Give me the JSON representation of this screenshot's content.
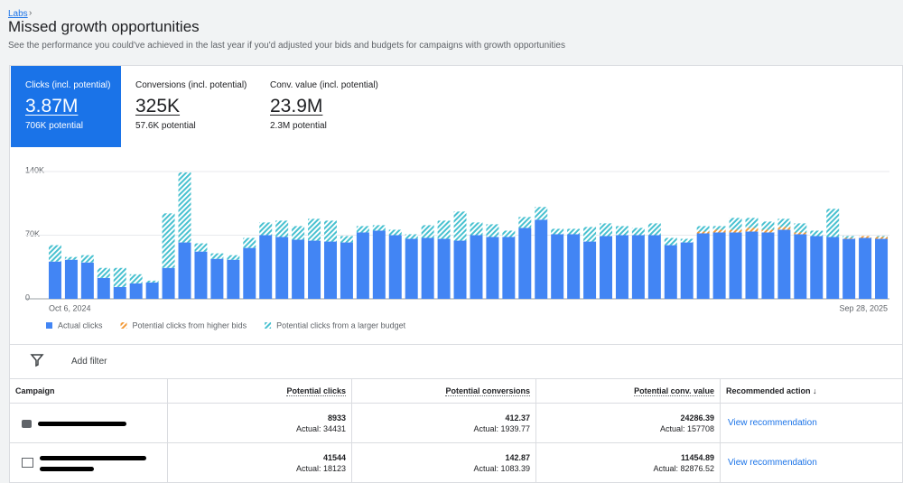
{
  "breadcrumb": "Labs",
  "header": {
    "title": "Missed growth opportunities",
    "subtitle": "See the performance you could've achieved in the last year if you'd adjusted your bids and budgets for campaigns with growth opportunities"
  },
  "metrics": [
    {
      "label": "Clicks (incl. potential)",
      "value": "3.87M",
      "potential": "706K potential"
    },
    {
      "label": "Conversions (incl. potential)",
      "value": "325K",
      "potential": "57.6K potential"
    },
    {
      "label": "Conv. value (incl. potential)",
      "value": "23.9M",
      "potential": "2.3M potential"
    }
  ],
  "chart_data": {
    "type": "stacked-bar",
    "categories": [
      "Oct 6, 2024",
      null,
      null,
      null,
      null,
      null,
      null,
      null,
      null,
      null,
      null,
      null,
      null,
      null,
      null,
      null,
      null,
      null,
      null,
      null,
      null,
      null,
      null,
      null,
      null,
      null,
      null,
      null,
      null,
      null,
      null,
      null,
      null,
      null,
      null,
      null,
      null,
      null,
      null,
      null,
      null,
      null,
      null,
      null,
      null,
      null,
      null,
      null,
      null,
      null,
      null,
      "Sep 28, 2025"
    ],
    "series": [
      {
        "name": "Actual clicks",
        "color": "#4285f4",
        "hatched": false,
        "values": [
          41000,
          43000,
          40000,
          23000,
          13000,
          17000,
          18000,
          34000,
          62000,
          52000,
          44000,
          43000,
          56000,
          70000,
          68000,
          65000,
          64000,
          63000,
          62000,
          73000,
          75000,
          70000,
          66000,
          67000,
          66000,
          64000,
          70000,
          68000,
          68000,
          78000,
          87000,
          71000,
          71000,
          63000,
          69000,
          70000,
          70000,
          70000,
          59000,
          62000,
          72000,
          73000,
          73000,
          74000,
          73000,
          76000,
          71000,
          69000,
          68000,
          66000,
          67000,
          66000
        ]
      },
      {
        "name": "Potential clicks from higher bids",
        "color": "#f29a38",
        "hatched": true,
        "values": [
          0,
          0,
          0,
          0,
          0,
          0,
          0,
          0,
          0,
          0,
          0,
          0,
          0,
          0,
          0,
          0,
          0,
          0,
          0,
          0,
          0,
          0,
          0,
          0,
          0,
          0,
          0,
          0,
          0,
          0,
          0,
          0,
          0,
          0,
          0,
          0,
          0,
          0,
          0,
          0,
          2000,
          3000,
          3000,
          4000,
          3000,
          3000,
          2000,
          0,
          0,
          1000,
          2000,
          2000
        ]
      },
      {
        "name": "Potential clicks from a larger budget",
        "color": "#48c1d0",
        "hatched": true,
        "values": [
          18000,
          3000,
          8000,
          11000,
          21000,
          10000,
          2000,
          60000,
          77000,
          9000,
          6000,
          5000,
          11000,
          14000,
          18000,
          15000,
          24000,
          23000,
          7000,
          7000,
          6000,
          6000,
          5000,
          14000,
          20000,
          32000,
          14000,
          14000,
          7000,
          12000,
          14000,
          6000,
          6000,
          16000,
          14000,
          10000,
          8000,
          13000,
          8000,
          4000,
          6000,
          4000,
          13000,
          11000,
          9000,
          9000,
          10000,
          6000,
          31000,
          2000,
          0,
          1000
        ]
      }
    ],
    "ylim": [
      0,
      140000
    ],
    "yticks": [
      {
        "value": 0,
        "label": "0"
      },
      {
        "value": 70000,
        "label": "70K"
      },
      {
        "value": 140000,
        "label": "140K"
      }
    ],
    "grid": true
  },
  "filter": "Add filter",
  "table": {
    "columns": [
      "Campaign",
      "Potential clicks",
      "Potential conversions",
      "Potential conv. value",
      "Recommended action"
    ],
    "rows": [
      {
        "cells": [
          {
            "potential": 8933,
            "actual": "Actual: 34431"
          },
          {
            "potential": 412.37,
            "actual": "Actual: 1939.77"
          },
          {
            "potential": 24286.39,
            "actual": "Actual: 157708"
          }
        ],
        "action": "View recommendation"
      },
      {
        "cells": [
          {
            "potential": 41544,
            "actual": "Actual: 18123"
          },
          {
            "potential": 142.87,
            "actual": "Actual: 1083.39"
          },
          {
            "potential": 11454.89,
            "actual": "Actual: 82876.52"
          }
        ],
        "action": "View recommendation"
      }
    ]
  }
}
